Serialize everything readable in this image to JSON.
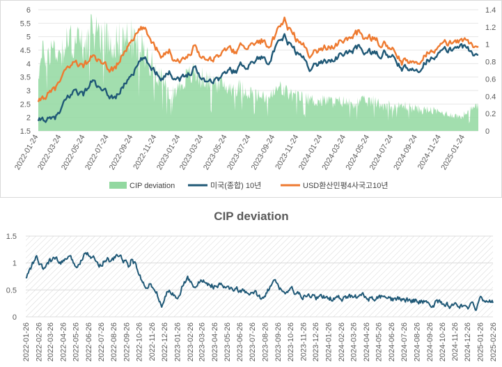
{
  "chart_data": [
    {
      "type": "line",
      "title": "",
      "dual_axis": true,
      "left_axis": {
        "min": 1.5,
        "max": 6,
        "step": 0.5,
        "ticks": [
          "1.5",
          "2",
          "2.5",
          "3",
          "3.5",
          "4",
          "4.5",
          "5",
          "5.5",
          "6"
        ]
      },
      "right_axis": {
        "min": 0,
        "max": 1.4,
        "step": 0.2,
        "ticks": [
          "0",
          "0.2",
          "0.4",
          "0.6",
          "0.8",
          "1",
          "1.2",
          "1.4"
        ]
      },
      "x_range": [
        "2022-01-24",
        "2025-02-28"
      ],
      "x_ticks": [
        "2022-01-24",
        "2022-03-24",
        "2022-05-24",
        "2022-07-24",
        "2022-09-24",
        "2022-11-24",
        "2023-01-24",
        "2023-03-24",
        "2023-05-24",
        "2023-07-24",
        "2023-09-24",
        "2023-11-24",
        "2024-01-24",
        "2024-03-24",
        "2024-05-24",
        "2024-07-24",
        "2024-09-24",
        "2024-11-24",
        "2025-01-24"
      ],
      "legend": [
        "CIP deviation",
        "미국(종합) 10년",
        "USD환산민평4사국고10년"
      ],
      "series": [
        {
          "name": "CIP deviation",
          "axis": "right",
          "style": "area",
          "color": "#92D8A0",
          "dates": [
            "2022-01-24",
            "2022-02-05",
            "2022-03-01",
            "2022-03-20",
            "2022-04-10",
            "2022-05-01",
            "2022-05-20",
            "2022-06-10",
            "2022-06-25",
            "2022-07-15",
            "2022-08-05",
            "2022-08-25",
            "2022-09-15",
            "2022-10-05",
            "2022-10-25",
            "2022-11-15",
            "2022-12-05",
            "2022-12-25",
            "2023-01-15",
            "2023-02-05",
            "2023-02-25",
            "2023-03-15",
            "2023-04-05",
            "2023-04-25",
            "2023-05-15",
            "2023-06-05",
            "2023-06-25",
            "2023-07-15",
            "2023-08-05",
            "2023-08-25",
            "2023-09-15",
            "2023-10-05",
            "2023-10-25",
            "2023-11-15",
            "2023-12-05",
            "2023-12-25",
            "2024-01-15",
            "2024-02-05",
            "2024-02-25",
            "2024-03-15",
            "2024-04-05",
            "2024-04-25",
            "2024-05-15",
            "2024-06-05",
            "2024-06-25",
            "2024-07-15",
            "2024-08-05",
            "2024-08-25",
            "2024-09-15",
            "2024-10-05",
            "2024-10-25",
            "2024-11-15",
            "2024-12-05",
            "2024-12-25",
            "2025-01-15",
            "2025-02-05",
            "2025-02-28"
          ],
          "values": [
            0.68,
            0.88,
            0.96,
            0.9,
            1.02,
            1.05,
            0.98,
            1.12,
            1.16,
            1.08,
            1.02,
            1.05,
            1.08,
            0.98,
            0.92,
            0.74,
            0.62,
            0.42,
            0.48,
            0.6,
            0.66,
            0.62,
            0.58,
            0.56,
            0.52,
            0.5,
            0.5,
            0.46,
            0.42,
            0.38,
            0.4,
            0.5,
            0.44,
            0.4,
            0.38,
            0.36,
            0.34,
            0.35,
            0.33,
            0.34,
            0.32,
            0.33,
            0.34,
            0.34,
            0.3,
            0.3,
            0.28,
            0.29,
            0.26,
            0.24,
            0.24,
            0.22,
            0.2,
            0.18,
            0.16,
            0.24,
            0.27
          ]
        },
        {
          "name": "미국(종합) 10년",
          "axis": "left",
          "style": "line",
          "color": "#1F5876",
          "dates": [
            "2022-01-24",
            "2022-02-10",
            "2022-03-01",
            "2022-03-20",
            "2022-04-10",
            "2022-05-01",
            "2022-05-20",
            "2022-06-14",
            "2022-07-01",
            "2022-07-20",
            "2022-08-10",
            "2022-09-01",
            "2022-09-20",
            "2022-10-20",
            "2022-11-10",
            "2022-12-05",
            "2022-12-25",
            "2023-01-15",
            "2023-02-05",
            "2023-03-01",
            "2023-03-20",
            "2023-04-10",
            "2023-05-01",
            "2023-05-25",
            "2023-06-15",
            "2023-07-05",
            "2023-07-25",
            "2023-08-15",
            "2023-09-05",
            "2023-09-25",
            "2023-10-19",
            "2023-11-10",
            "2023-12-01",
            "2023-12-27",
            "2024-01-20",
            "2024-02-10",
            "2024-03-01",
            "2024-03-25",
            "2024-04-25",
            "2024-05-15",
            "2024-06-10",
            "2024-07-01",
            "2024-07-25",
            "2024-08-15",
            "2024-09-15",
            "2024-10-10",
            "2024-11-05",
            "2024-11-25",
            "2024-12-20",
            "2025-01-13",
            "2025-02-05",
            "2025-02-28"
          ],
          "values": [
            1.8,
            1.95,
            1.85,
            2.15,
            2.7,
            3.05,
            2.85,
            3.4,
            3.0,
            2.8,
            2.75,
            3.2,
            3.65,
            4.15,
            3.9,
            3.55,
            3.7,
            3.5,
            3.45,
            3.95,
            3.45,
            3.4,
            3.45,
            3.7,
            3.75,
            3.95,
            4.05,
            4.25,
            4.15,
            4.5,
            4.95,
            4.55,
            4.25,
            3.85,
            4.05,
            4.15,
            4.25,
            4.35,
            4.6,
            4.45,
            4.3,
            4.4,
            4.15,
            3.85,
            3.65,
            4.05,
            4.35,
            4.4,
            4.5,
            4.75,
            4.45,
            4.25
          ]
        },
        {
          "name": "USD환산민평4사국고10년",
          "axis": "left",
          "style": "line",
          "color": "#EE7A30",
          "dates": [
            "2022-01-24",
            "2022-02-10",
            "2022-03-01",
            "2022-03-20",
            "2022-04-10",
            "2022-05-01",
            "2022-05-20",
            "2022-06-14",
            "2022-07-01",
            "2022-07-20",
            "2022-08-10",
            "2022-09-01",
            "2022-09-20",
            "2022-10-20",
            "2022-11-10",
            "2022-12-05",
            "2022-12-25",
            "2023-01-15",
            "2023-02-05",
            "2023-03-01",
            "2023-03-20",
            "2023-04-10",
            "2023-05-01",
            "2023-05-25",
            "2023-06-15",
            "2023-07-05",
            "2023-07-25",
            "2023-08-15",
            "2023-09-05",
            "2023-09-25",
            "2023-10-19",
            "2023-11-10",
            "2023-12-01",
            "2023-12-27",
            "2024-01-20",
            "2024-02-10",
            "2024-03-01",
            "2024-03-25",
            "2024-04-25",
            "2024-05-15",
            "2024-06-10",
            "2024-07-01",
            "2024-07-25",
            "2024-08-15",
            "2024-09-15",
            "2024-10-10",
            "2024-11-05",
            "2024-11-25",
            "2024-12-20",
            "2025-01-13",
            "2025-02-05",
            "2025-02-28"
          ],
          "values": [
            2.5,
            2.8,
            2.9,
            3.3,
            3.8,
            4.1,
            3.9,
            4.3,
            4.0,
            3.75,
            3.85,
            4.4,
            4.95,
            5.3,
            4.9,
            4.4,
            4.5,
            4.15,
            4.1,
            4.75,
            4.25,
            4.2,
            4.3,
            4.55,
            4.45,
            4.7,
            4.75,
            4.85,
            4.8,
            4.95,
            5.55,
            5.05,
            4.7,
            4.35,
            4.55,
            4.65,
            4.75,
            4.85,
            5.15,
            5.0,
            4.8,
            4.75,
            4.4,
            4.1,
            3.95,
            4.35,
            4.6,
            4.65,
            4.75,
            4.95,
            4.75,
            4.55
          ]
        }
      ]
    },
    {
      "type": "line",
      "title": "CIP deviation",
      "y_axis": {
        "min": 0,
        "max": 1.5,
        "step": 0.5,
        "ticks": [
          "0",
          "0.5",
          "1",
          "1.5"
        ]
      },
      "x_range": [
        "2022-01-26",
        "2025-02-26"
      ],
      "x_ticks": [
        "2022-01-26",
        "2022-02-26",
        "2022-03-26",
        "2022-04-26",
        "2022-05-26",
        "2022-06-26",
        "2022-07-26",
        "2022-08-26",
        "2022-09-26",
        "2022-10-26",
        "2022-11-26",
        "2022-12-26",
        "2023-01-26",
        "2023-02-26",
        "2023-03-26",
        "2023-04-26",
        "2023-05-26",
        "2023-06-26",
        "2023-07-26",
        "2023-08-26",
        "2023-09-26",
        "2023-10-26",
        "2023-11-26",
        "2023-12-26",
        "2024-01-26",
        "2024-02-26",
        "2024-03-26",
        "2024-04-26",
        "2024-05-26",
        "2024-06-26",
        "2024-07-26",
        "2024-08-26",
        "2024-09-26",
        "2024-10-26",
        "2024-11-26",
        "2024-12-26",
        "2025-01-26",
        "2025-02-26"
      ],
      "series": [
        {
          "name": "CIP deviation",
          "color": "#1F5876",
          "dates": [
            "2022-01-26",
            "2022-02-05",
            "2022-02-20",
            "2022-03-10",
            "2022-03-20",
            "2022-04-05",
            "2022-04-20",
            "2022-05-05",
            "2022-05-20",
            "2022-06-01",
            "2022-06-10",
            "2022-06-20",
            "2022-07-01",
            "2022-07-15",
            "2022-07-25",
            "2022-08-10",
            "2022-08-20",
            "2022-09-05",
            "2022-09-20",
            "2022-10-01",
            "2022-10-10",
            "2022-10-20",
            "2022-10-26",
            "2022-11-10",
            "2022-11-20",
            "2022-11-30",
            "2022-12-10",
            "2022-12-20",
            "2023-01-05",
            "2023-01-15",
            "2023-01-26",
            "2023-02-10",
            "2023-02-20",
            "2023-03-05",
            "2023-03-15",
            "2023-04-01",
            "2023-04-15",
            "2023-05-01",
            "2023-05-15",
            "2023-06-01",
            "2023-06-15",
            "2023-07-01",
            "2023-07-15",
            "2023-08-01",
            "2023-08-15",
            "2023-09-01",
            "2023-09-15",
            "2023-10-01",
            "2023-10-15",
            "2023-11-01",
            "2023-11-15",
            "2023-12-01",
            "2023-12-15",
            "2024-01-01",
            "2024-01-15",
            "2024-02-01",
            "2024-02-15",
            "2024-03-01",
            "2024-03-15",
            "2024-04-01",
            "2024-04-15",
            "2024-05-01",
            "2024-05-15",
            "2024-06-01",
            "2024-06-15",
            "2024-07-01",
            "2024-07-15",
            "2024-08-01",
            "2024-08-15",
            "2024-09-01",
            "2024-09-15",
            "2024-10-01",
            "2024-10-15",
            "2024-11-01",
            "2024-11-15",
            "2024-12-01",
            "2024-12-15",
            "2024-12-28",
            "2025-01-05",
            "2025-01-15",
            "2025-01-26",
            "2025-02-10",
            "2025-02-26"
          ],
          "values": [
            0.7,
            0.88,
            1.1,
            0.85,
            1.02,
            1.08,
            0.98,
            1.1,
            1.02,
            0.92,
            1.1,
            1.25,
            1.15,
            1.02,
            0.98,
            1.1,
            1.02,
            1.15,
            1.05,
            0.95,
            1.1,
            0.9,
            0.8,
            0.55,
            0.62,
            0.5,
            0.4,
            0.18,
            0.5,
            0.42,
            0.38,
            0.6,
            0.72,
            0.58,
            0.62,
            0.66,
            0.6,
            0.55,
            0.58,
            0.5,
            0.52,
            0.48,
            0.4,
            0.44,
            0.36,
            0.48,
            0.66,
            0.54,
            0.44,
            0.5,
            0.4,
            0.35,
            0.4,
            0.34,
            0.38,
            0.34,
            0.36,
            0.32,
            0.38,
            0.36,
            0.4,
            0.35,
            0.32,
            0.36,
            0.33,
            0.3,
            0.35,
            0.3,
            0.32,
            0.28,
            0.3,
            0.22,
            0.28,
            0.24,
            0.2,
            0.26,
            0.18,
            0.1,
            0.22,
            0.16,
            0.3,
            0.35,
            0.28
          ]
        }
      ]
    }
  ]
}
